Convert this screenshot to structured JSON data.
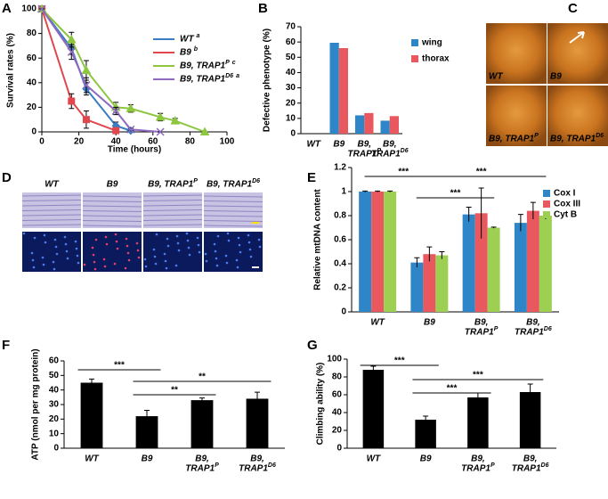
{
  "chart_data": [
    {
      "type": "line",
      "panel": "A",
      "x_label": "Time (hours)",
      "y_label": "Survival rates (%)",
      "xlim": [
        0,
        100
      ],
      "xticks": [
        0,
        20,
        40,
        60,
        80,
        100
      ],
      "ylim": [
        0,
        100
      ],
      "yticks": [
        0,
        20,
        40,
        60,
        80,
        100
      ],
      "legend": "upper right",
      "series": [
        {
          "name": "WT",
          "note": "a",
          "color": "#3b7dc4",
          "marker": "diamond",
          "x": [
            0,
            16,
            24,
            40,
            48
          ],
          "values": [
            100,
            68,
            35,
            5,
            1
          ],
          "errors": [
            0,
            5,
            5,
            3,
            1
          ]
        },
        {
          "name": "B9",
          "note": "b",
          "color": "#e0474c",
          "marker": "square",
          "x": [
            0,
            16,
            24,
            40
          ],
          "values": [
            100,
            25,
            10,
            1
          ],
          "errors": [
            0,
            6,
            7,
            2
          ]
        },
        {
          "name": "B9, TRAP1",
          "name_sup": "P",
          "note": "c",
          "color": "#8dc63f",
          "marker": "triangle",
          "x": [
            0,
            16,
            24,
            40,
            48,
            64,
            72,
            88
          ],
          "values": [
            100,
            75,
            50,
            20,
            19,
            12,
            9,
            0
          ],
          "errors": [
            0,
            6,
            8,
            4,
            3,
            3,
            2,
            0
          ]
        },
        {
          "name": "B9, TRAP1",
          "name_sup": "D6",
          "note": "a",
          "color": "#8e6bbf",
          "marker": "cross",
          "x": [
            0,
            16,
            24,
            40,
            48,
            64
          ],
          "values": [
            100,
            65,
            38,
            17,
            2,
            0
          ],
          "errors": [
            0,
            6,
            6,
            3,
            1,
            0
          ]
        }
      ]
    },
    {
      "type": "bar",
      "panel": "B",
      "y_label": "Defective phenotype (%)",
      "categories": [
        "WT",
        "B9",
        {
          "lines": [
            "B9,",
            "TRAP1"
          ],
          "sup": "P"
        },
        {
          "lines": [
            "B9,",
            "TRAP1"
          ],
          "sup": "D6"
        }
      ],
      "ylim": [
        0,
        70
      ],
      "yticks": [
        0,
        10,
        20,
        30,
        40,
        50,
        60,
        70
      ],
      "legend": "right",
      "series": [
        {
          "name": "wing",
          "color": "#2e86c8",
          "values": [
            0,
            59.5,
            12,
            8.5
          ]
        },
        {
          "name": "thorax",
          "color": "#e8585e",
          "values": [
            0,
            56,
            13.5,
            11.5
          ]
        }
      ]
    },
    {
      "type": "bar",
      "panel": "E",
      "y_label": "Relative mtDNA content",
      "categories": [
        "WT",
        "B9",
        {
          "lines": [
            "B9,",
            "TRAP1"
          ],
          "sup": "P"
        },
        {
          "lines": [
            "B9,",
            "TRAP1"
          ],
          "sup": "D6"
        }
      ],
      "ylim": [
        0,
        1.2
      ],
      "yticks": [
        0,
        0.2,
        0.4,
        0.6,
        0.8,
        1,
        1.2
      ],
      "legend": "upper right",
      "series": [
        {
          "name": "Cox I",
          "color": "#2e86c8",
          "values": [
            1,
            0.41,
            0.81,
            0.74
          ],
          "errors": [
            0.005,
            0.04,
            0.06,
            0.07
          ]
        },
        {
          "name": "Cox III",
          "color": "#e8585e",
          "values": [
            1,
            0.48,
            0.82,
            0.84
          ],
          "errors": [
            0.005,
            0.06,
            0.21,
            0.07
          ]
        },
        {
          "name": "Cyt B",
          "color": "#9dcf53",
          "values": [
            1,
            0.47,
            0.7,
            0.8
          ],
          "errors": [
            0.005,
            0.03,
            0.005,
            0.03
          ]
        }
      ],
      "annotations": [
        {
          "text": "***",
          "between": [
            0,
            1
          ]
        },
        {
          "text": "***",
          "between": [
            1,
            2
          ]
        },
        {
          "text": "***",
          "between": [
            1,
            3
          ]
        }
      ]
    },
    {
      "type": "bar",
      "panel": "F",
      "y_label": "ATP (nmol per mg protein)",
      "categories": [
        "WT",
        "B9",
        {
          "lines": [
            "B9,",
            "TRAP1"
          ],
          "sup": "P"
        },
        {
          "lines": [
            "B9,",
            "TRAP1"
          ],
          "sup": "D6"
        }
      ],
      "ylim": [
        0,
        60
      ],
      "yticks": [
        0,
        10,
        20,
        30,
        40,
        50,
        60
      ],
      "color": "#000000",
      "values": [
        45,
        22,
        33,
        34
      ],
      "errors": [
        2.5,
        4,
        1.5,
        4.5
      ],
      "annotations": [
        {
          "text": "***",
          "between": [
            0,
            1
          ]
        },
        {
          "text": "**",
          "between": [
            1,
            2
          ]
        },
        {
          "text": "**",
          "between": [
            1,
            3
          ]
        }
      ]
    },
    {
      "type": "bar",
      "panel": "G",
      "y_label": "Climbing ability (%)",
      "categories": [
        "WT",
        "B9",
        {
          "lines": [
            "B9,",
            "TRAP1"
          ],
          "sup": "P"
        },
        {
          "lines": [
            "B9,",
            "TRAP1"
          ],
          "sup": "D6"
        }
      ],
      "ylim": [
        0,
        100
      ],
      "yticks": [
        0,
        20,
        40,
        60,
        80,
        100
      ],
      "color": "#000000",
      "values": [
        88,
        32,
        57,
        63
      ],
      "errors": [
        4,
        4,
        5,
        9
      ],
      "annotations": [
        {
          "text": "***",
          "between": [
            0,
            1
          ]
        },
        {
          "text": "***",
          "between": [
            1,
            2
          ]
        },
        {
          "text": "***",
          "between": [
            1,
            3
          ]
        }
      ]
    }
  ],
  "images": [
    {
      "panel": "C",
      "labels": [
        "WT",
        "B9",
        {
          "lines": [
            "B9, TRAP1"
          ],
          "sup": "P"
        },
        {
          "lines": [
            "B9, TRAP1"
          ],
          "sup": "D6"
        }
      ]
    },
    {
      "panel": "D",
      "labels": [
        "WT",
        "B9",
        {
          "lines": [
            "B9, TRAP1"
          ],
          "sup": "P"
        },
        {
          "lines": [
            "B9, TRAP1"
          ],
          "sup": "D6"
        }
      ]
    }
  ]
}
